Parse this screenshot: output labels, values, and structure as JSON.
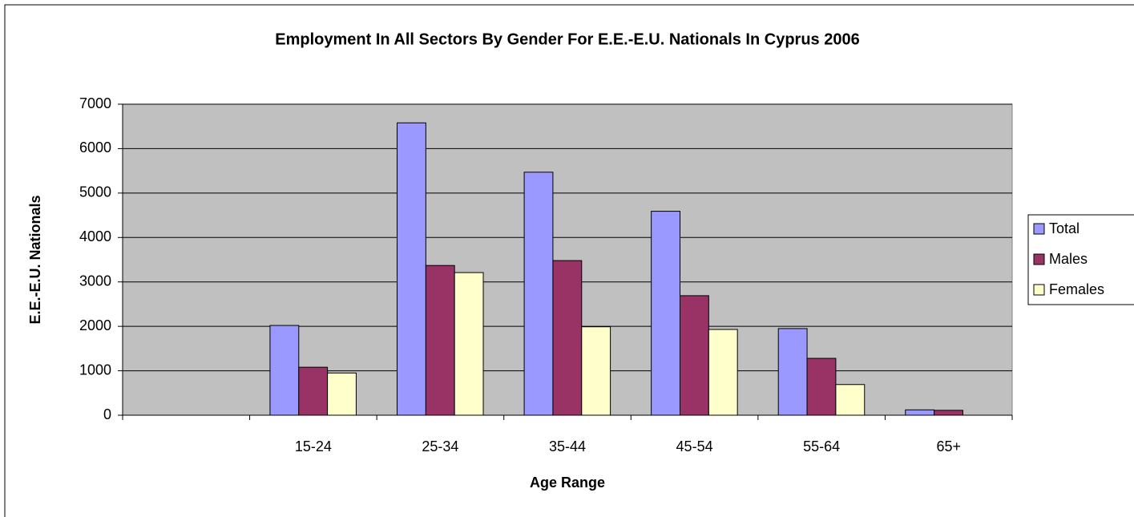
{
  "chart_data": {
    "type": "bar",
    "title": "Employment In All Sectors By Gender For E.E.-E.U. Nationals In Cyprus 2006",
    "x_label": "Age Range",
    "y_label": "E.E.-E.U. Nationals",
    "categories": [
      null,
      "15-24",
      "25-34",
      "35-44",
      "45-54",
      "55-64",
      "65+"
    ],
    "series": [
      {
        "name": "Total",
        "color": "#9999ff",
        "values": [
          null,
          2020,
          6580,
          5470,
          4590,
          1950,
          120
        ]
      },
      {
        "name": "Males",
        "color": "#993366",
        "values": [
          null,
          1080,
          3370,
          3480,
          2690,
          1280,
          110
        ]
      },
      {
        "name": "Females",
        "color": "#ffffcc",
        "values": [
          null,
          950,
          3210,
          1990,
          1930,
          690,
          0
        ]
      }
    ],
    "ylim": [
      0,
      7000
    ],
    "yticks": [
      0,
      1000,
      2000,
      3000,
      4000,
      5000,
      6000,
      7000
    ],
    "grid": true,
    "legend": "right",
    "plot_background": "#c0c0c0"
  }
}
